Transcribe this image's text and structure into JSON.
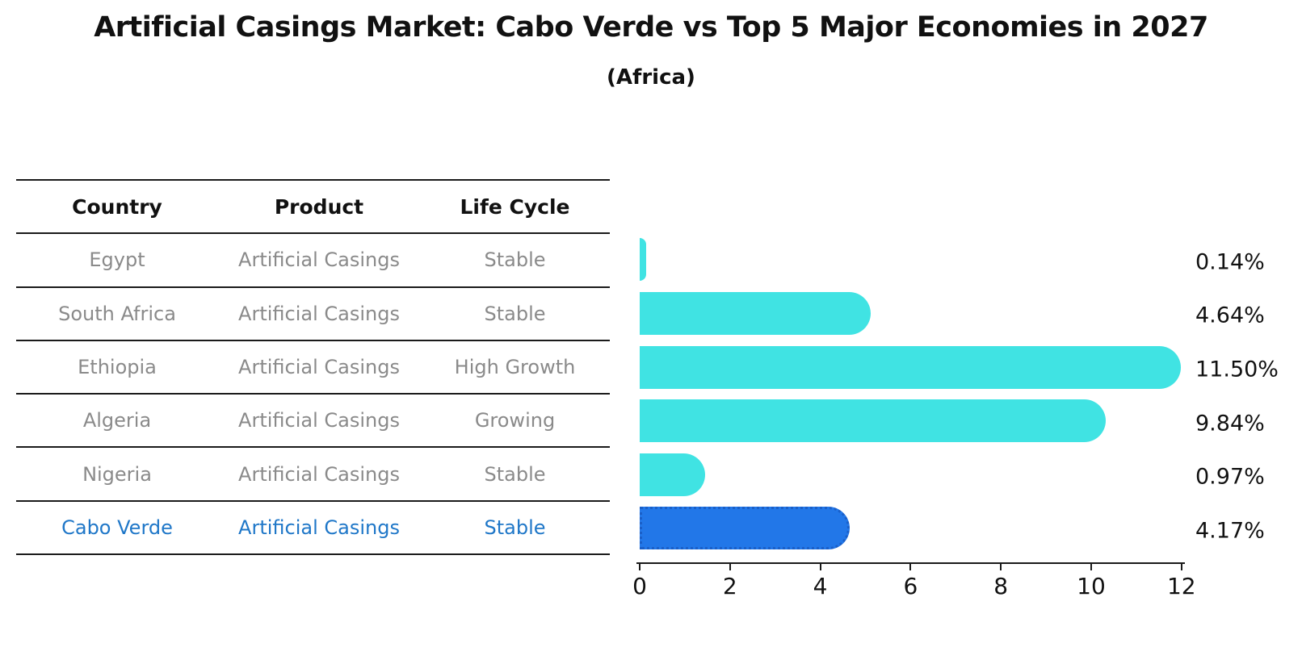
{
  "title": "Artificial Casings Market: Cabo Verde vs Top 5 Major Economies in 2027",
  "subtitle": "(Africa)",
  "table": {
    "columns": [
      "Country",
      "Product",
      "Life Cycle"
    ],
    "rows": [
      {
        "country": "Egypt",
        "product": "Artificial Casings",
        "life_cycle": "Stable",
        "highlight": false
      },
      {
        "country": "South Africa",
        "product": "Artificial Casings",
        "life_cycle": "Stable",
        "highlight": false
      },
      {
        "country": "Ethiopia",
        "product": "Artificial Casings",
        "life_cycle": "High Growth",
        "highlight": false
      },
      {
        "country": "Algeria",
        "product": "Artificial Casings",
        "life_cycle": "Growing",
        "highlight": false
      },
      {
        "country": "Nigeria",
        "product": "Artificial Casings",
        "life_cycle": "Stable",
        "highlight": false
      },
      {
        "country": "Cabo Verde",
        "product": "Artificial Casings",
        "life_cycle": "Stable",
        "highlight": true
      }
    ]
  },
  "chart_data": {
    "type": "bar",
    "orientation": "horizontal",
    "categories": [
      "Egypt",
      "South Africa",
      "Ethiopia",
      "Algeria",
      "Nigeria",
      "Cabo Verde"
    ],
    "values": [
      0.14,
      4.64,
      11.5,
      9.84,
      0.97,
      4.17
    ],
    "value_labels": [
      "0.14%",
      "4.64%",
      "11.50%",
      "9.84%",
      "0.97%",
      "4.17%"
    ],
    "title": "Artificial Casings Market: Cabo Verde vs Top 5 Major Economies in 2027 (Africa)",
    "xlabel": "",
    "ylabel": "",
    "xlim": [
      0,
      12
    ],
    "xticks": [
      0,
      2,
      4,
      6,
      8,
      10,
      12
    ],
    "grid": false,
    "legend": false,
    "highlight_index": 5
  },
  "colors": {
    "bar_default": "#40e3e3",
    "bar_highlight": "#2277e8",
    "bar_highlight_border": "#1a5fc8",
    "highlight_text": "#1f77c8",
    "muted_text": "#8a8a8a",
    "axis": "#1a1a1a",
    "label_text": "#111111"
  }
}
